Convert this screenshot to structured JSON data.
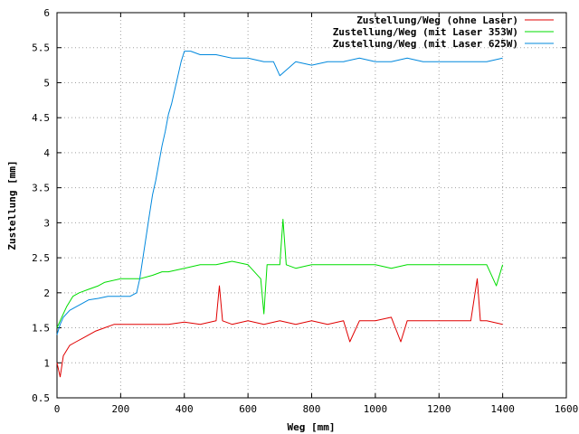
{
  "chart_data": {
    "type": "line",
    "title": "",
    "xlabel": "Weg [mm]",
    "ylabel": "Zustellung [mm]",
    "xlim": [
      0,
      1600
    ],
    "ylim": [
      0.5,
      6
    ],
    "x_ticks": [
      0,
      200,
      400,
      600,
      800,
      1000,
      1200,
      1400,
      1600
    ],
    "y_ticks": [
      0.5,
      1,
      1.5,
      2,
      2.5,
      3,
      3.5,
      4,
      4.5,
      5,
      5.5,
      6
    ],
    "x_tick_labels": [
      "0",
      "200",
      "400",
      "600",
      "800",
      "1000",
      "1200",
      "1400",
      "1600"
    ],
    "y_tick_labels": [
      "0.5",
      "1",
      "1.5",
      "2",
      "2.5",
      "3",
      "3.5",
      "4",
      "4.5",
      "5",
      "5.5",
      "6"
    ],
    "grid": true,
    "legend_position": "top-right",
    "series": [
      {
        "name": "Zustellung/Weg (ohne Laser)",
        "color": "#e00000",
        "x": [
          0,
          10,
          20,
          40,
          60,
          80,
          100,
          120,
          150,
          180,
          200,
          250,
          300,
          350,
          400,
          450,
          500,
          510,
          520,
          550,
          600,
          650,
          700,
          750,
          800,
          850,
          900,
          920,
          950,
          1000,
          1050,
          1080,
          1100,
          1150,
          1200,
          1250,
          1300,
          1320,
          1330,
          1350,
          1400
        ],
        "values": [
          1.0,
          0.8,
          1.1,
          1.25,
          1.3,
          1.35,
          1.4,
          1.45,
          1.5,
          1.55,
          1.55,
          1.55,
          1.55,
          1.55,
          1.58,
          1.55,
          1.6,
          2.1,
          1.6,
          1.55,
          1.6,
          1.55,
          1.6,
          1.55,
          1.6,
          1.55,
          1.6,
          1.3,
          1.6,
          1.6,
          1.65,
          1.3,
          1.6,
          1.6,
          1.6,
          1.6,
          1.6,
          2.2,
          1.6,
          1.6,
          1.55
        ]
      },
      {
        "name": "Zustellung/Weg (mit Laser 353W)",
        "color": "#00dd00",
        "x": [
          0,
          10,
          20,
          30,
          50,
          70,
          100,
          130,
          150,
          200,
          230,
          260,
          300,
          330,
          350,
          400,
          450,
          500,
          550,
          600,
          640,
          650,
          660,
          700,
          710,
          720,
          750,
          800,
          850,
          900,
          950,
          1000,
          1050,
          1100,
          1150,
          1200,
          1250,
          1300,
          1350,
          1380,
          1400
        ],
        "values": [
          1.5,
          1.6,
          1.7,
          1.8,
          1.95,
          2.0,
          2.05,
          2.1,
          2.15,
          2.2,
          2.2,
          2.2,
          2.25,
          2.3,
          2.3,
          2.35,
          2.4,
          2.4,
          2.45,
          2.4,
          2.2,
          1.7,
          2.4,
          2.4,
          3.05,
          2.4,
          2.35,
          2.4,
          2.4,
          2.4,
          2.4,
          2.4,
          2.35,
          2.4,
          2.4,
          2.4,
          2.4,
          2.4,
          2.4,
          2.1,
          2.4
        ]
      },
      {
        "name": "Zustellung/Weg (mit Laser 625W)",
        "color": "#0088dd",
        "x": [
          0,
          10,
          20,
          40,
          60,
          80,
          100,
          130,
          160,
          200,
          230,
          250,
          260,
          270,
          280,
          290,
          300,
          310,
          320,
          330,
          340,
          350,
          360,
          370,
          380,
          390,
          400,
          420,
          450,
          500,
          550,
          600,
          650,
          680,
          700,
          750,
          800,
          850,
          900,
          950,
          1000,
          1050,
          1100,
          1150,
          1200,
          1250,
          1300,
          1350,
          1400
        ],
        "values": [
          1.4,
          1.55,
          1.65,
          1.75,
          1.8,
          1.85,
          1.9,
          1.92,
          1.95,
          1.95,
          1.95,
          2.0,
          2.2,
          2.5,
          2.8,
          3.1,
          3.4,
          3.6,
          3.85,
          4.1,
          4.3,
          4.55,
          4.7,
          4.9,
          5.1,
          5.3,
          5.45,
          5.45,
          5.4,
          5.4,
          5.35,
          5.35,
          5.3,
          5.3,
          5.1,
          5.3,
          5.25,
          5.3,
          5.3,
          5.35,
          5.3,
          5.3,
          5.35,
          5.3,
          5.3,
          5.3,
          5.3,
          5.3,
          5.35
        ]
      }
    ]
  }
}
